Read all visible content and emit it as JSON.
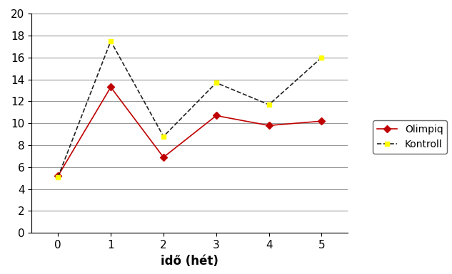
{
  "chart_data": {
    "type": "line",
    "x_label": "idő (hét)",
    "x": [
      0,
      1,
      2,
      3,
      4,
      5
    ],
    "xlim": [
      -0.5,
      5.5
    ],
    "xticks": [
      0,
      1,
      2,
      3,
      4,
      5
    ],
    "ylim": [
      0,
      20
    ],
    "yticks": [
      0,
      2,
      4,
      6,
      8,
      10,
      12,
      14,
      16,
      18,
      20
    ],
    "grid": true,
    "legend": "right",
    "series": [
      {
        "name": "Olimpiq",
        "color": "#c00000",
        "marker": "diamond",
        "line_style": "solid",
        "values": [
          5.2,
          13.3,
          6.9,
          10.7,
          9.8,
          10.2
        ]
      },
      {
        "name": "Kontroll",
        "color": "#ffff00",
        "marker": "square",
        "line_style": "dashed",
        "values": [
          5.1,
          17.5,
          8.8,
          13.7,
          11.7,
          16.0
        ]
      }
    ]
  }
}
